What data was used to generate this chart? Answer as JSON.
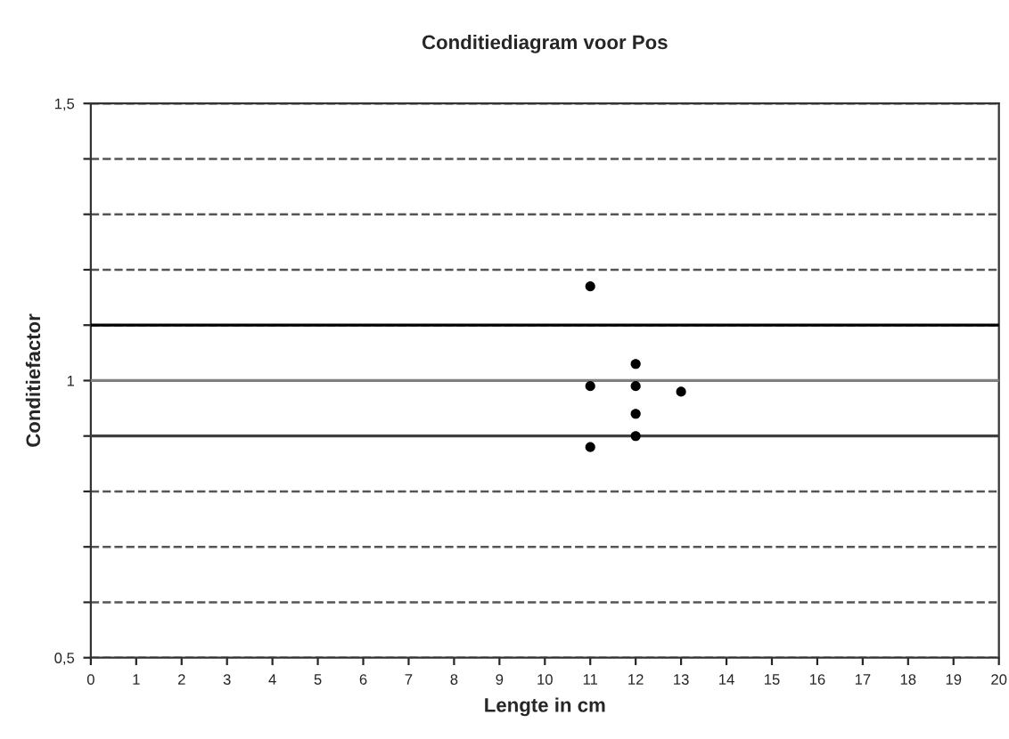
{
  "chart_data": {
    "type": "scatter",
    "title": "Conditiediagram voor Pos",
    "xlabel": "Lengte in cm",
    "ylabel": "Conditiefactor",
    "x": [
      11,
      11,
      11,
      12,
      12,
      12,
      12,
      13
    ],
    "series": [
      {
        "color": "#000000",
        "values": [
          1.17,
          0.99,
          0.88,
          1.03,
          0.99,
          0.94,
          0.9,
          0.98
        ]
      }
    ],
    "marker": "circle",
    "xlim": [
      0,
      20
    ],
    "xticks": [
      0,
      1,
      2,
      3,
      4,
      5,
      6,
      7,
      8,
      9,
      10,
      11,
      12,
      13,
      14,
      15,
      16,
      17,
      18,
      19,
      20
    ],
    "ylim": [
      0.5,
      1.5
    ],
    "yticks": [
      {
        "value": 0.5,
        "label": "0,5"
      },
      {
        "value": 0.6,
        "label": null
      },
      {
        "value": 0.7,
        "label": null
      },
      {
        "value": 0.8,
        "label": null
      },
      {
        "value": 0.9,
        "label": null
      },
      {
        "value": 1,
        "label": "1"
      },
      {
        "value": 1.1,
        "label": null
      },
      {
        "value": 1.2,
        "label": null
      },
      {
        "value": 1.3,
        "label": null
      },
      {
        "value": 1.4,
        "label": null
      },
      {
        "value": 1.5,
        "label": "1,5"
      }
    ],
    "grid": "y",
    "line_style": "dashed",
    "ref_lines": [
      {
        "axis": "y",
        "value": 1.1,
        "color": "#000000",
        "line_style": "solid"
      },
      {
        "axis": "y",
        "value": 1,
        "color": "#808080",
        "line_style": "solid"
      },
      {
        "axis": "y",
        "value": 0.9,
        "color": "#404040",
        "line_style": "solid"
      }
    ]
  }
}
